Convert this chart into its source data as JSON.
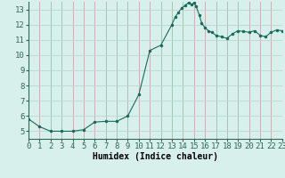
{
  "x": [
    0,
    1,
    2,
    3,
    4,
    5,
    6,
    7,
    8,
    9,
    10,
    11,
    12,
    13,
    13.3,
    13.6,
    13.9,
    14.2,
    14.5,
    14.8,
    15.0,
    15.2,
    15.5,
    15.7,
    16.0,
    16.3,
    16.6,
    17.0,
    17.5,
    18.0,
    18.5,
    19.0,
    19.5,
    20.0,
    20.5,
    21.0,
    21.5,
    22.0,
    22.5,
    23.0
  ],
  "y": [
    5.8,
    5.3,
    5.0,
    5.0,
    5.0,
    5.1,
    5.6,
    5.65,
    5.65,
    6.0,
    7.4,
    10.3,
    10.65,
    12.0,
    12.5,
    12.8,
    13.1,
    13.25,
    13.45,
    13.3,
    13.45,
    13.2,
    12.6,
    12.1,
    11.8,
    11.6,
    11.5,
    11.3,
    11.2,
    11.1,
    11.4,
    11.6,
    11.55,
    11.5,
    11.6,
    11.3,
    11.2,
    11.5,
    11.65,
    11.6
  ],
  "line_color": "#1a6b5a",
  "marker_color": "#1a6b5a",
  "bg_color": "#d8f0ec",
  "grid_color_v": "#c8a8a8",
  "grid_color_h": "#b8d8d0",
  "xlabel": "Humidex (Indice chaleur)",
  "xlim": [
    0,
    23
  ],
  "ylim": [
    4.5,
    13.5
  ],
  "yticks": [
    5,
    6,
    7,
    8,
    9,
    10,
    11,
    12,
    13
  ],
  "xticks": [
    0,
    1,
    2,
    3,
    4,
    5,
    6,
    7,
    8,
    9,
    10,
    11,
    12,
    13,
    14,
    15,
    16,
    17,
    18,
    19,
    20,
    21,
    22,
    23
  ],
  "xlabel_fontsize": 7,
  "tick_fontsize": 6.5
}
